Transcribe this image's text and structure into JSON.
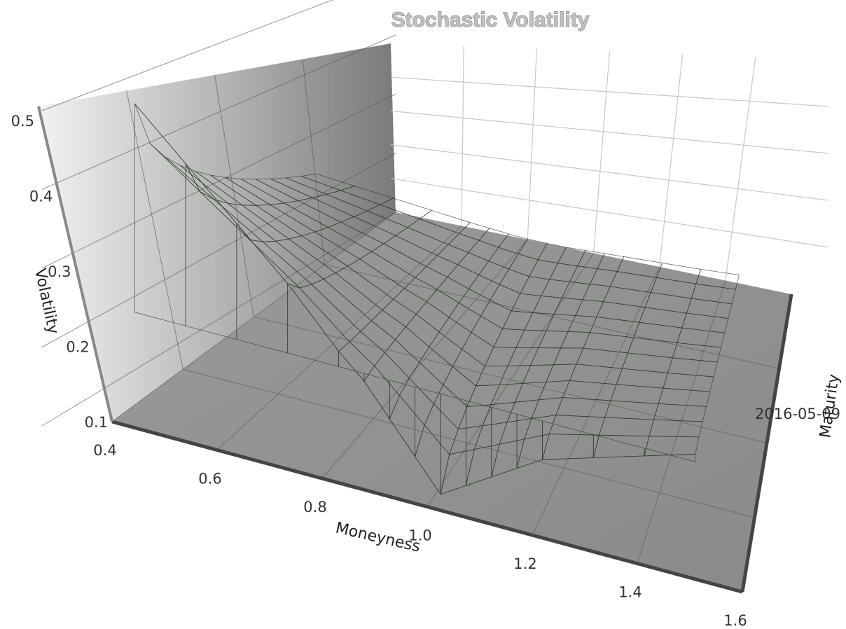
{
  "chart_data": {
    "type": "surface",
    "title": "Stochastic Volatility",
    "xlabel": "Moneyness",
    "ylabel": "Maturity",
    "zlabel": "Volatility",
    "x_ticks": [
      "0.4",
      "0.6",
      "0.8",
      "1.0",
      "1.2",
      "1.4",
      "1.6"
    ],
    "y_ticks": [
      "2016-05-09"
    ],
    "z_ticks": [
      "0.1",
      "0.2",
      "0.3",
      "0.4",
      "0.5"
    ],
    "xlim": [
      0.4,
      1.6
    ],
    "zlim": [
      0.1,
      0.5
    ],
    "moneyness": [
      0.4,
      0.5,
      0.6,
      0.7,
      0.8,
      0.85,
      0.9,
      0.95,
      1.0,
      1.05,
      1.1,
      1.15,
      1.2,
      1.3,
      1.4,
      1.5
    ],
    "near_maturity_volatility": [
      0.49,
      0.43,
      0.37,
      0.31,
      0.24,
      0.21,
      0.17,
      0.13,
      0.09,
      0.11,
      0.13,
      0.15,
      0.17,
      0.19,
      0.21,
      0.23
    ],
    "far_maturity_volatility": [
      0.25,
      0.245,
      0.24,
      0.235,
      0.23,
      0.228,
      0.226,
      0.225,
      0.225,
      0.226,
      0.228,
      0.23,
      0.232,
      0.236,
      0.24,
      0.245
    ],
    "colorscale": [
      "#0000ff",
      "#00aa00",
      "#ffffff",
      "#e6d800",
      "#7a0000"
    ]
  }
}
